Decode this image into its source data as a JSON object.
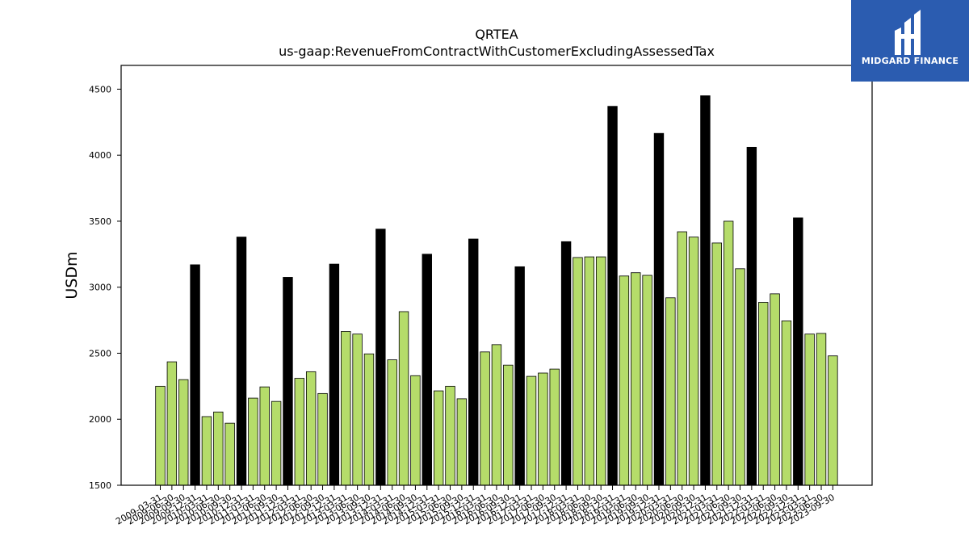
{
  "header": {
    "title": "QRTEA",
    "subtitle": "us-gaap:RevenueFromContractWithCustomerExcludingAssessedTax"
  },
  "logo": {
    "text": "MIDGARD FINANCE",
    "icon": "midgard-logo-icon",
    "color": "#2b5cb0"
  },
  "colors": {
    "quarter_bar": "#b5dc6a",
    "annual_bar": "#000000",
    "bar_edge": "#000000"
  },
  "chart_data": {
    "type": "bar",
    "title": "QRTEA",
    "subtitle": "us-gaap:RevenueFromContractWithCustomerExcludingAssessedTax",
    "xlabel": "",
    "ylabel": "USDm",
    "ylim": [
      1500,
      4680
    ],
    "yticks": [
      1500,
      2000,
      2500,
      3000,
      3500,
      4000,
      4500
    ],
    "grid": false,
    "categories": [
      "2009-03-31",
      "2009-06-30",
      "2009-09-30",
      "2009-12-31",
      "2010-03-31",
      "2010-06-30",
      "2010-09-30",
      "2010-12-31",
      "2011-03-31",
      "2011-06-30",
      "2011-09-30",
      "2011-12-31",
      "2012-03-31",
      "2012-06-30",
      "2012-09-30",
      "2012-12-31",
      "2013-03-31",
      "2013-06-30",
      "2013-09-30",
      "2013-12-31",
      "2014-03-31",
      "2014-06-30",
      "2014-09-30",
      "2014-12-31",
      "2015-03-31",
      "2015-06-30",
      "2015-09-30",
      "2015-12-31",
      "2016-03-31",
      "2016-06-30",
      "2016-09-30",
      "2016-12-31",
      "2017-03-31",
      "2017-06-30",
      "2017-09-30",
      "2017-12-31",
      "2018-03-31",
      "2018-06-30",
      "2018-09-30",
      "2018-12-31",
      "2019-03-31",
      "2019-06-30",
      "2019-09-30",
      "2019-12-31",
      "2020-03-31",
      "2020-06-30",
      "2020-09-30",
      "2020-12-31",
      "2021-03-31",
      "2021-06-30",
      "2021-09-30",
      "2021-12-31",
      "2022-03-31",
      "2022-06-30",
      "2022-09-30",
      "2022-12-31",
      "2023-03-31",
      "2023-06-30",
      "2023-09-30"
    ],
    "values": [
      2250,
      2435,
      2300,
      3170,
      2020,
      2055,
      1970,
      3380,
      2160,
      2245,
      2135,
      3075,
      2310,
      2360,
      2195,
      3175,
      2665,
      2645,
      2495,
      3440,
      2450,
      2815,
      2330,
      3250,
      2215,
      2250,
      2155,
      3365,
      2510,
      2565,
      2410,
      3155,
      2325,
      2350,
      2380,
      3345,
      3225,
      3230,
      3230,
      4370,
      3085,
      3110,
      3090,
      4165,
      2920,
      3420,
      3380,
      4450,
      3335,
      3500,
      3140,
      4060,
      2885,
      2950,
      2745,
      3525,
      2645,
      2650,
      2480
    ],
    "annual": [
      false,
      false,
      false,
      true,
      false,
      false,
      false,
      true,
      false,
      false,
      false,
      true,
      false,
      false,
      false,
      true,
      false,
      false,
      false,
      true,
      false,
      false,
      false,
      true,
      false,
      false,
      false,
      true,
      false,
      false,
      false,
      true,
      false,
      false,
      false,
      true,
      false,
      false,
      false,
      true,
      false,
      false,
      false,
      true,
      false,
      false,
      false,
      true,
      false,
      false,
      false,
      true,
      false,
      false,
      false,
      true,
      false,
      false,
      false
    ]
  }
}
